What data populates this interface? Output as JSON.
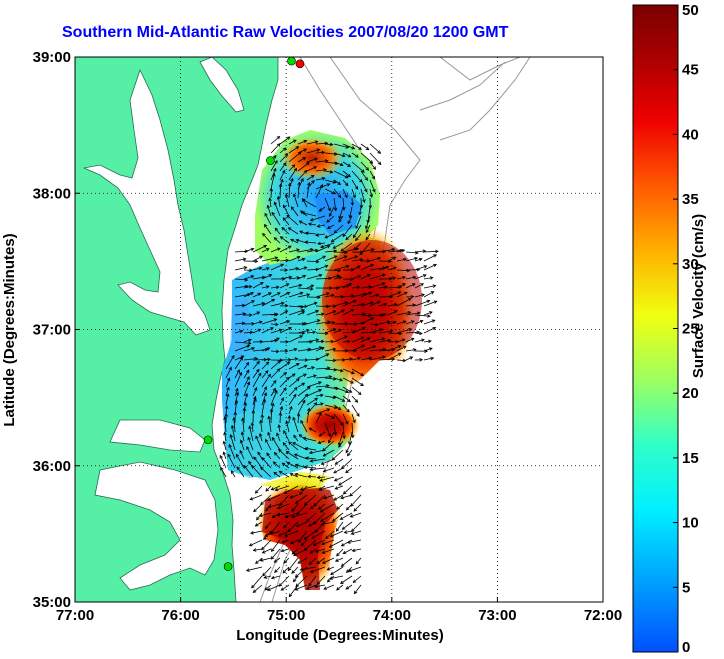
{
  "title": "Southern Mid-Atlantic Raw Velocities 2007/08/20 1200 GMT",
  "map": {
    "xlabel": "Longitude (Degrees:Minutes)",
    "ylabel": "Latitude (Degrees:Minutes)",
    "lon_range": [
      -77,
      -72
    ],
    "lat_range": [
      35,
      39
    ],
    "lon_ticks": [
      {
        "value": -77,
        "label": "77:00"
      },
      {
        "value": -76,
        "label": "76:00"
      },
      {
        "value": -75,
        "label": "75:00"
      },
      {
        "value": -74,
        "label": "74:00"
      },
      {
        "value": -73,
        "label": "73:00"
      },
      {
        "value": -72,
        "label": "72:00"
      }
    ],
    "lat_ticks": [
      {
        "value": 39,
        "label": "39:00"
      },
      {
        "value": 38,
        "label": "38:00"
      },
      {
        "value": 37,
        "label": "37:00"
      },
      {
        "value": 36,
        "label": "36:00"
      },
      {
        "value": 35,
        "label": "35:00"
      }
    ],
    "land_color": "#55f0a5",
    "grid": "dotted",
    "stations": [
      {
        "lon": -74.87,
        "lat": 38.95,
        "color": "#ff0000"
      },
      {
        "lon": -74.95,
        "lat": 38.97,
        "color": "#00dd00"
      },
      {
        "lon": -75.15,
        "lat": 38.24,
        "color": "#00dd00"
      },
      {
        "lon": -75.74,
        "lat": 36.19,
        "color": "#00dd00"
      },
      {
        "lon": -75.55,
        "lat": 35.26,
        "color": "#00dd00"
      }
    ]
  },
  "colorbar": {
    "label": "Surface Velocity (cm/s)",
    "min": 0,
    "max": 50,
    "ticks": [
      {
        "value": 0,
        "label": "0"
      },
      {
        "value": 5,
        "label": "5"
      },
      {
        "value": 10,
        "label": "10"
      },
      {
        "value": 15,
        "label": "15"
      },
      {
        "value": 20,
        "label": "20"
      },
      {
        "value": 25,
        "label": "25"
      },
      {
        "value": 30,
        "label": "30"
      },
      {
        "value": 35,
        "label": "35"
      },
      {
        "value": 40,
        "label": "40"
      },
      {
        "value": 45,
        "label": "45"
      },
      {
        "value": 50,
        "label": "50"
      }
    ]
  }
}
